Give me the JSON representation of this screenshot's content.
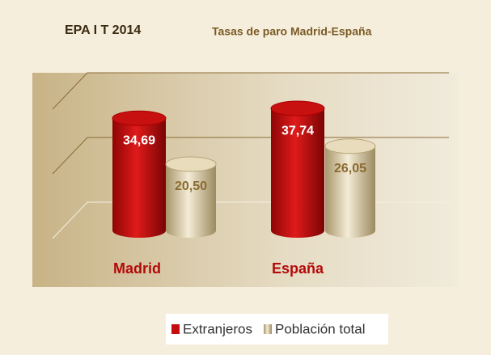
{
  "chart_data": {
    "type": "bar",
    "title": "EPA I T 2014",
    "subtitle": "Tasas de paro Madrid-España",
    "categories": [
      "Madrid",
      "España"
    ],
    "series": [
      {
        "name": "Extranjeros",
        "color": "#c40d0d",
        "values": [
          34.69,
          37.74
        ],
        "value_labels": [
          "34,69",
          "37,74"
        ]
      },
      {
        "name": "Población total",
        "color": "#d9caa3",
        "values": [
          20.5,
          26.05
        ],
        "value_labels": [
          "20,50",
          "26,05"
        ]
      }
    ],
    "ylim": [
      0,
      40
    ],
    "yticks": [
      0,
      20,
      40
    ],
    "grid": true
  }
}
